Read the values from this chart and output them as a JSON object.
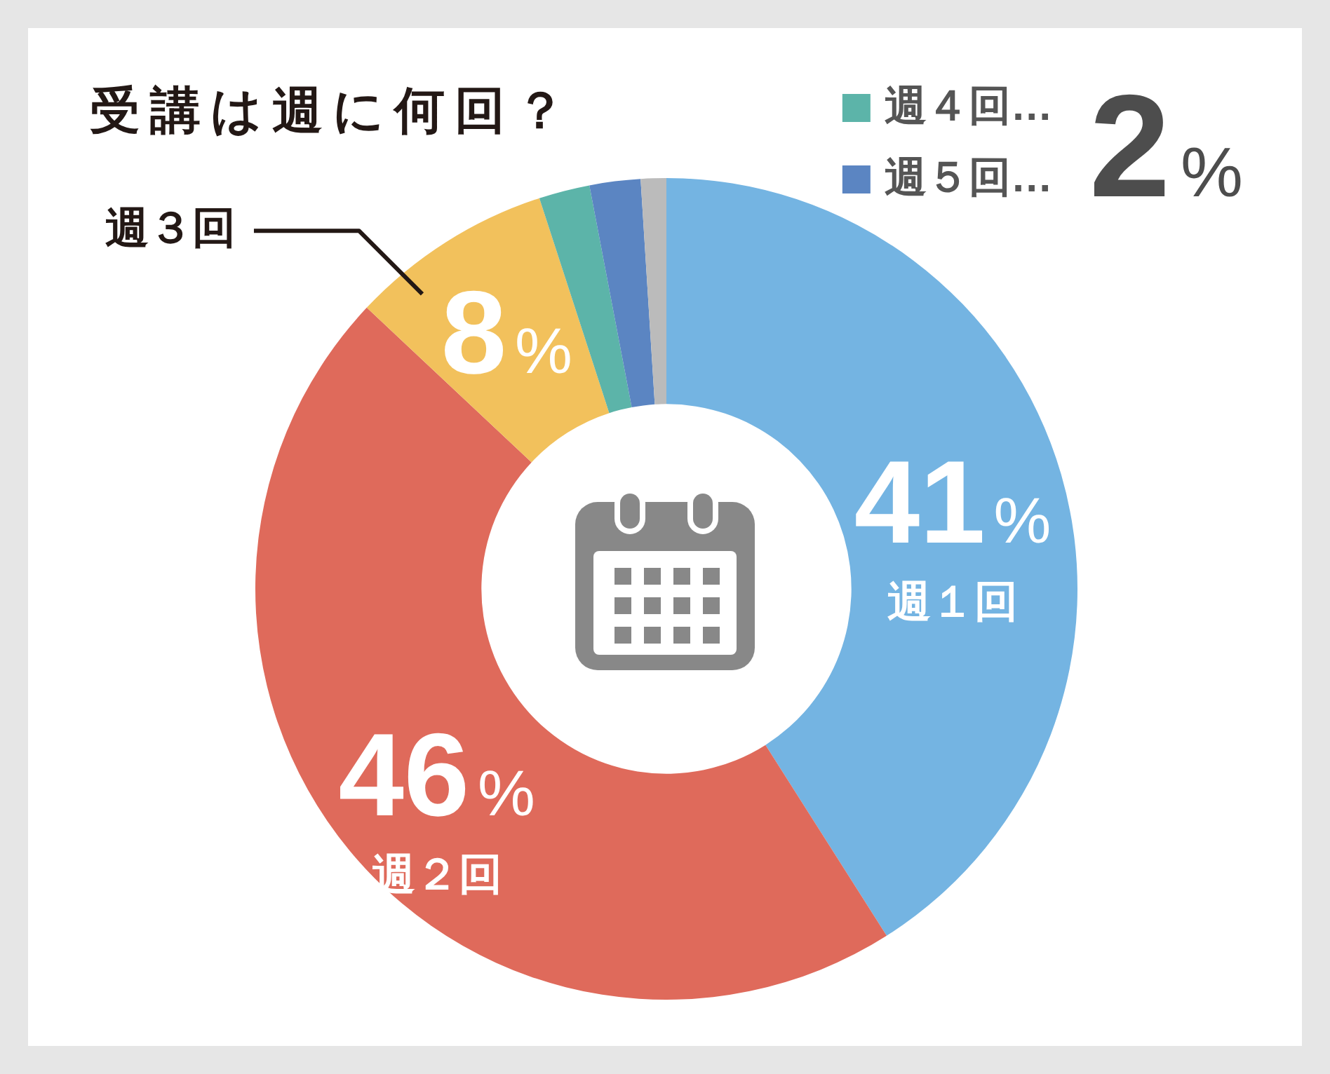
{
  "chart_data": {
    "type": "donut",
    "title": "受講は週に何回？",
    "categories": [
      "週１回",
      "週２回",
      "週３回",
      "週４回…",
      "週５回…",
      null
    ],
    "values": [
      41,
      46,
      8,
      2,
      2,
      1
    ],
    "colors": [
      "#74b4e2",
      "#df6a5b",
      "#f2c15c",
      "#5cb4a9",
      "#5b85c2",
      "#bbbbbb"
    ],
    "value_labels": [
      "41%",
      "46%",
      "8%",
      "2%",
      null,
      null
    ],
    "legend": "top right"
  }
}
